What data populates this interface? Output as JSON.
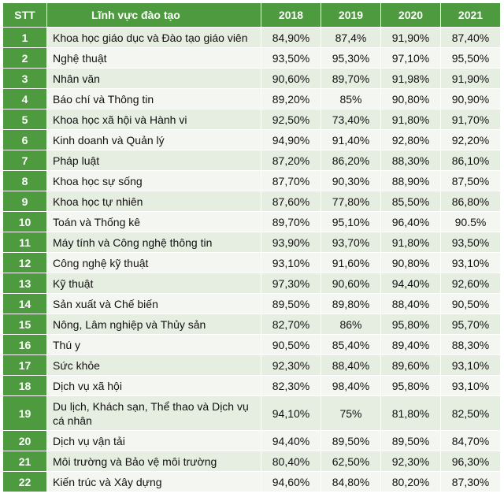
{
  "header": {
    "stt": "STT",
    "field": "Lĩnh vực đào tạo",
    "years": [
      "2018",
      "2019",
      "2020",
      "2021"
    ]
  },
  "rows": [
    {
      "stt": "1",
      "field": "Khoa học giáo dục và Đào tạo giáo viên",
      "values": [
        "84,90%",
        "87,4%",
        "91,90%",
        "87,40%"
      ]
    },
    {
      "stt": "2",
      "field": "Nghệ thuật",
      "values": [
        "93,50%",
        "95,30%",
        "97,10%",
        "95,50%"
      ]
    },
    {
      "stt": "3",
      "field": "Nhân văn",
      "values": [
        "90,60%",
        "89,70%",
        "91,98%",
        "91,90%"
      ]
    },
    {
      "stt": "4",
      "field": "Báo chí và Thông tin",
      "values": [
        "89,20%",
        "85%",
        "90,80%",
        "90,90%"
      ]
    },
    {
      "stt": "5",
      "field": "Khoa học xã hội và Hành vi",
      "values": [
        "92,50%",
        "73,40%",
        "91,80%",
        "91,70%"
      ]
    },
    {
      "stt": "6",
      "field": "Kinh doanh và Quản lý",
      "values": [
        "94,90%",
        "91,40%",
        "92,80%",
        "92,20%"
      ]
    },
    {
      "stt": "7",
      "field": "Pháp luật",
      "values": [
        "87,20%",
        "86,20%",
        "88,30%",
        "86,10%"
      ]
    },
    {
      "stt": "8",
      "field": "Khoa học sự sống",
      "values": [
        "87,70%",
        "90,30%",
        "88,90%",
        "87,50%"
      ]
    },
    {
      "stt": "9",
      "field": "Khoa học tự nhiên",
      "values": [
        "87,60%",
        "77,80%",
        "85,50%",
        "86,80%"
      ]
    },
    {
      "stt": "10",
      "field": "Toán và Thống kê",
      "values": [
        "89,70%",
        "95,10%",
        "96,40%",
        "90.5%"
      ]
    },
    {
      "stt": "11",
      "field": "Máy tính và Công nghệ thông tin",
      "values": [
        "93,90%",
        "93,70%",
        "91,80%",
        "93,50%"
      ]
    },
    {
      "stt": "12",
      "field": "Công nghệ kỹ thuật",
      "values": [
        "93,10%",
        "91,60%",
        "90,80%",
        "93,10%"
      ]
    },
    {
      "stt": "13",
      "field": "Kỹ thuật",
      "values": [
        "97,30%",
        "90,60%",
        "94,40%",
        "92,60%"
      ]
    },
    {
      "stt": "14",
      "field": "Sản xuất và Chế biến",
      "values": [
        "89,50%",
        "89,80%",
        "88,40%",
        "90,50%"
      ]
    },
    {
      "stt": "15",
      "field": "Nông, Lâm nghiệp và Thủy sản",
      "values": [
        "82,70%",
        "86%",
        "95,80%",
        "95,70%"
      ]
    },
    {
      "stt": "16",
      "field": "Thú y",
      "values": [
        "90,50%",
        "85,40%",
        "89,40%",
        "88,30%"
      ]
    },
    {
      "stt": "17",
      "field": "Sức khỏe",
      "values": [
        "92,30%",
        "88,40%",
        "89,60%",
        "93,10%"
      ]
    },
    {
      "stt": "18",
      "field": "Dịch vụ xã hội",
      "values": [
        "82,30%",
        "98,40%",
        "95,80%",
        "93,10%"
      ]
    },
    {
      "stt": "19",
      "field": "Du lịch, Khách sạn, Thể thao và Dịch vụ cá nhân",
      "values": [
        "94,10%",
        "75%",
        "81,80%",
        "82,50%"
      ]
    },
    {
      "stt": "20",
      "field": "Dịch vụ vận tải",
      "values": [
        "94,40%",
        "89,50%",
        "89,50%",
        "84,70%"
      ]
    },
    {
      "stt": "21",
      "field": "Môi trường và Bảo vệ môi trường",
      "values": [
        "80,40%",
        "62,50%",
        "92,30%",
        "96,30%"
      ]
    },
    {
      "stt": "22",
      "field": "Kiến trúc và Xây dựng",
      "values": [
        "94,60%",
        "84,80%",
        "80,20%",
        "87,30%"
      ]
    }
  ]
}
